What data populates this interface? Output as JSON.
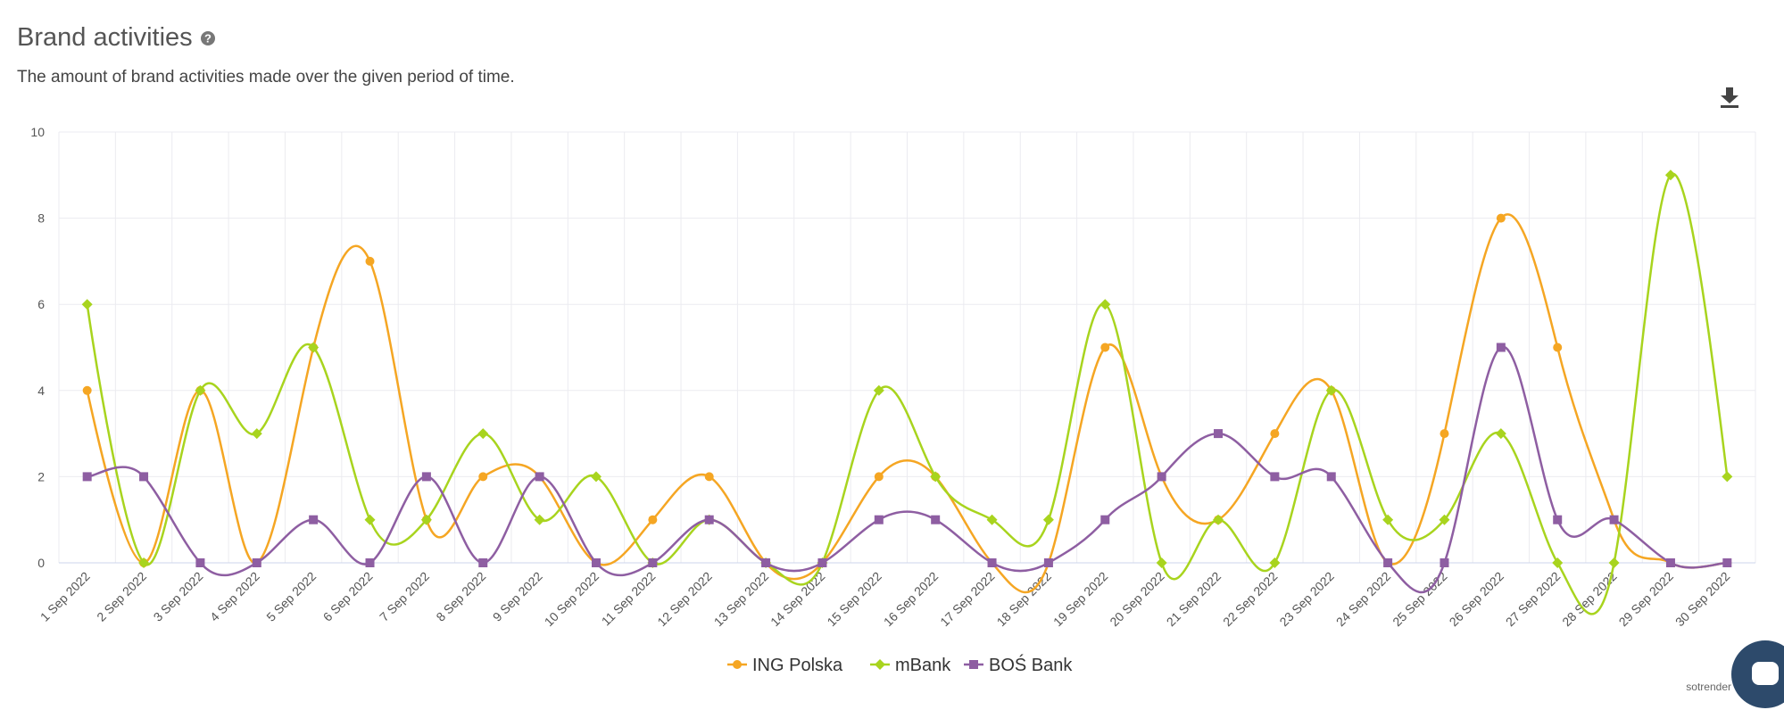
{
  "chart_data": {
    "type": "line",
    "title": "Brand activities",
    "subtitle": "The amount of brand activities made over the given period of time.",
    "watermark": "sotrender",
    "categories": [
      "1 Sep 2022",
      "2 Sep 2022",
      "3 Sep 2022",
      "4 Sep 2022",
      "5 Sep 2022",
      "6 Sep 2022",
      "7 Sep 2022",
      "8 Sep 2022",
      "9 Sep 2022",
      "10 Sep 2022",
      "11 Sep 2022",
      "12 Sep 2022",
      "13 Sep 2022",
      "14 Sep 2022",
      "15 Sep 2022",
      "16 Sep 2022",
      "17 Sep 2022",
      "18 Sep 2022",
      "19 Sep 2022",
      "20 Sep 2022",
      "21 Sep 2022",
      "22 Sep 2022",
      "23 Sep 2022",
      "24 Sep 2022",
      "25 Sep 2022",
      "26 Sep 2022",
      "27 Sep 2022",
      "28 Sep 2022",
      "29 Sep 2022",
      "30 Sep 2022"
    ],
    "series": [
      {
        "name": "ING Polska",
        "color": "#f5a623",
        "marker": "circle",
        "values": [
          4,
          0,
          4,
          0,
          5,
          7,
          1,
          2,
          2,
          0,
          1,
          2,
          0,
          0,
          2,
          2,
          0,
          0,
          5,
          2,
          1,
          3,
          4,
          0,
          3,
          8,
          5,
          1,
          0,
          0
        ]
      },
      {
        "name": "mBank",
        "color": "#a8d41e",
        "marker": "diamond",
        "values": [
          6,
          0,
          4,
          3,
          5,
          1,
          1,
          3,
          1,
          2,
          0,
          1,
          0,
          0,
          4,
          2,
          1,
          1,
          6,
          0,
          1,
          0,
          4,
          1,
          1,
          3,
          0,
          0,
          9,
          2
        ]
      },
      {
        "name": "BOŚ Bank",
        "color": "#8e5ea2",
        "marker": "square",
        "values": [
          2,
          2,
          0,
          0,
          1,
          0,
          2,
          0,
          2,
          0,
          0,
          1,
          0,
          0,
          1,
          1,
          0,
          0,
          1,
          2,
          3,
          2,
          2,
          0,
          0,
          5,
          1,
          1,
          0,
          0
        ]
      }
    ],
    "ylim": [
      0,
      10
    ],
    "yticks": [
      0,
      2,
      4,
      6,
      8,
      10
    ],
    "grid": true,
    "legend": "bottom"
  }
}
